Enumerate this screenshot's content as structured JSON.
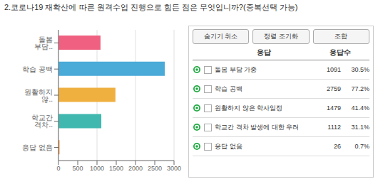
{
  "chart_data": {
    "type": "bar",
    "orientation": "horizontal",
    "title": "2.코로나19 재확산에 따른 원격수업 진행으로 힘든 점은 무엇입니까?(중복선택 가능)",
    "categories": [
      "돌봄 부담..",
      "학습 공백",
      "원활하지 않..",
      "학교간 격차..",
      "응답 없음"
    ],
    "values": [
      1091,
      2759,
      1479,
      1112,
      26
    ],
    "colors": [
      "#F06080",
      "#4AAAD8",
      "#F0B040",
      "#40B8B0",
      "#F08020"
    ],
    "xlim": [
      0,
      3000
    ],
    "xticks": [
      0,
      500,
      1000,
      1500,
      2000,
      2500,
      3000
    ],
    "grid": true,
    "table_labels": [
      "돌봄 부담 가중",
      "학습 공백",
      "원활하지 않은 학사일정",
      "학교간 격차 발생에 대한 우려",
      "응답 없음"
    ],
    "percentages": [
      "30.5%",
      "77.2%",
      "41.4%",
      "31.1%",
      "0.7%"
    ],
    "buttons": [
      "숨기기 취소",
      "정렬 조기화",
      "조합"
    ],
    "col_headers": [
      "응답",
      "응답수"
    ]
  }
}
